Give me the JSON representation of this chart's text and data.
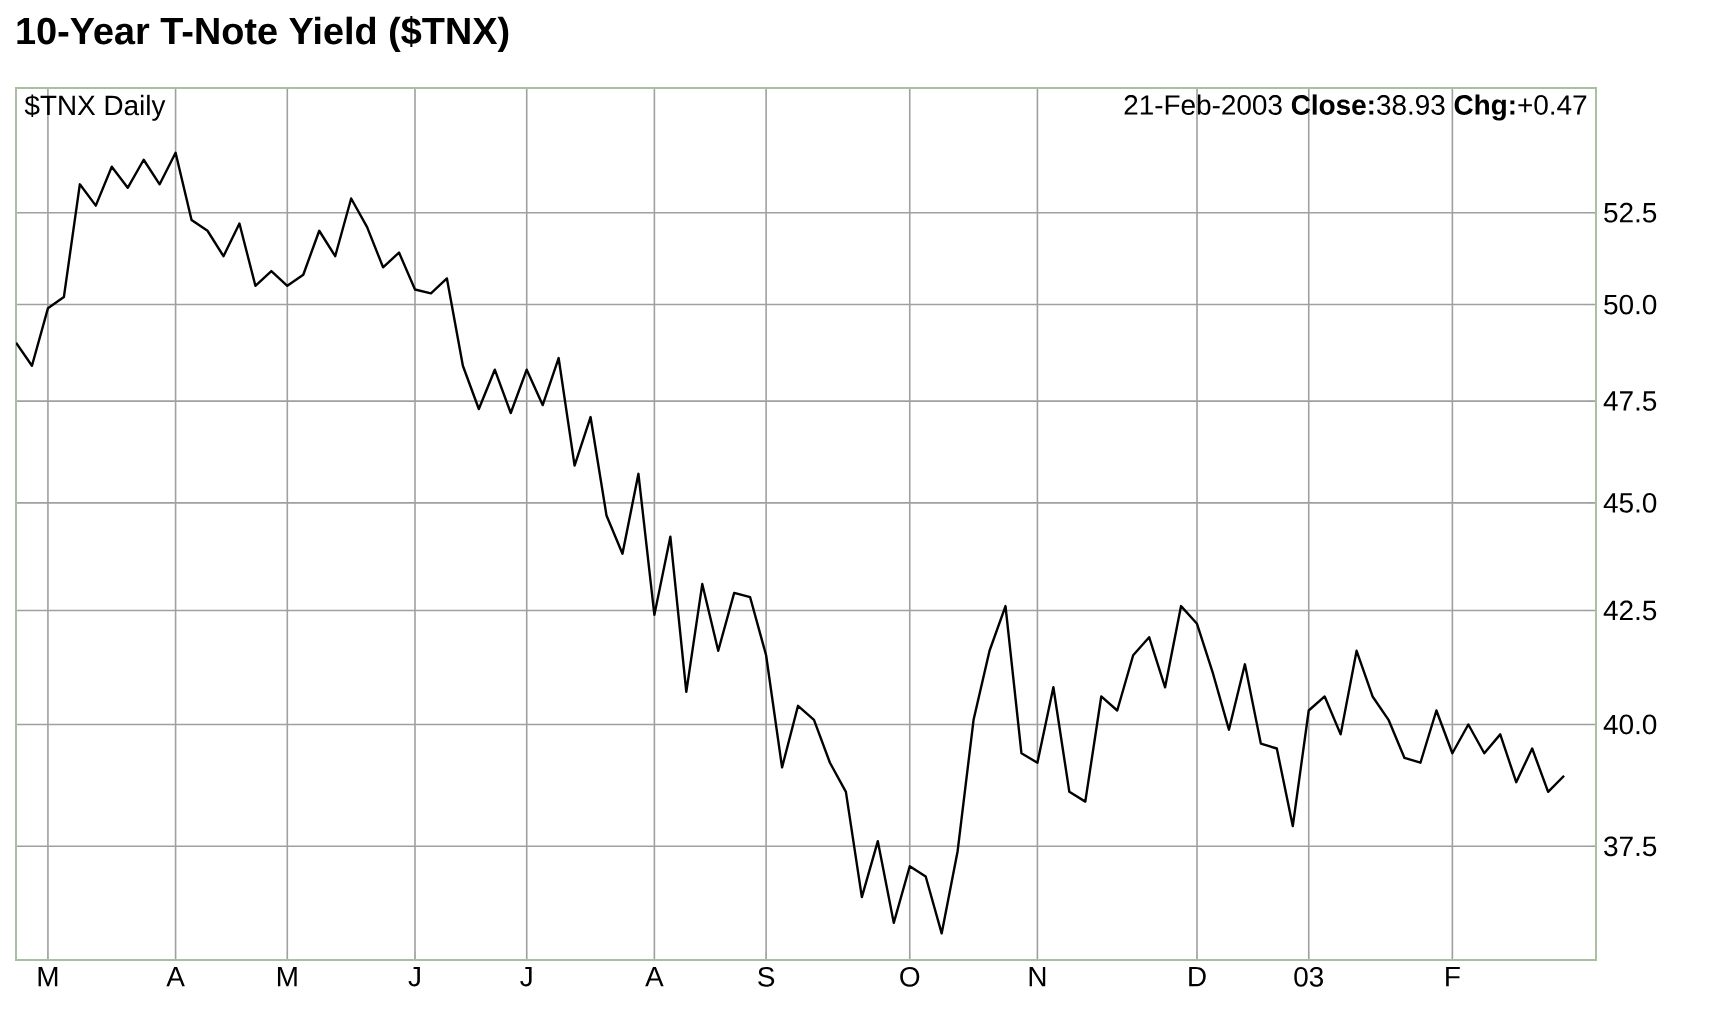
{
  "chart_data": {
    "type": "line",
    "title": "10-Year T-Note Yield ($TNX)",
    "annotations": [
      "$TNX Daily",
      "21-Feb-2003 **Close:**38.93 **Chg:**+0.47"
    ],
    "color": "#000000",
    "log": true,
    "grid": true,
    "categories": [
      null,
      null,
      "M",
      null,
      null,
      null,
      null,
      null,
      null,
      null,
      "A",
      null,
      null,
      null,
      null,
      null,
      null,
      "M",
      null,
      null,
      null,
      null,
      null,
      null,
      null,
      "J",
      null,
      null,
      null,
      null,
      null,
      null,
      "J",
      null,
      null,
      null,
      null,
      null,
      null,
      null,
      "A",
      null,
      null,
      null,
      null,
      null,
      null,
      "S",
      null,
      null,
      null,
      null,
      null,
      null,
      null,
      null,
      "O",
      null,
      null,
      null,
      null,
      null,
      null,
      null,
      "N",
      null,
      null,
      null,
      null,
      null,
      null,
      null,
      null,
      null,
      "D",
      null,
      null,
      null,
      null,
      null,
      null,
      "03",
      null,
      null,
      null,
      null,
      null,
      null,
      null,
      null,
      "F",
      null,
      null,
      null,
      null,
      null,
      null,
      null
    ],
    "ylim": [
      35.3,
      56.1
    ],
    "yticks": [
      37.5,
      {
        "value": 40,
        "label": "40.0"
      },
      42.5,
      {
        "value": 45,
        "label": "45.0"
      },
      47.5,
      {
        "value": 50,
        "label": "50.0"
      },
      52.5
    ],
    "values": [
      49.0,
      48.4,
      49.9,
      50.2,
      53.3,
      52.7,
      53.8,
      53.2,
      54.0,
      53.3,
      54.2,
      52.3,
      52.0,
      51.3,
      52.2,
      50.5,
      50.9,
      50.5,
      50.8,
      52.0,
      51.3,
      52.9,
      52.1,
      51.0,
      51.4,
      50.4,
      50.3,
      50.7,
      48.4,
      47.3,
      48.3,
      47.2,
      48.3,
      47.4,
      48.6,
      45.9,
      47.1,
      44.7,
      43.8,
      45.7,
      42.4,
      44.2,
      40.7,
      43.1,
      41.6,
      42.9,
      42.8,
      41.5,
      39.1,
      40.4,
      40.1,
      39.2,
      38.6,
      36.5,
      37.6,
      36.0,
      37.1,
      36.9,
      35.8,
      37.4,
      40.1,
      41.6,
      42.6,
      39.4,
      39.2,
      40.8,
      38.6,
      38.4,
      40.6,
      40.3,
      41.5,
      41.9,
      40.8,
      42.6,
      42.2,
      41.1,
      39.9,
      41.3,
      39.6,
      39.5,
      37.9,
      40.3,
      40.6,
      39.8,
      41.6,
      40.6,
      40.1,
      39.3,
      39.2,
      40.3,
      39.4,
      40.0,
      39.4,
      39.8,
      38.8,
      39.5,
      38.6,
      38.93
    ]
  }
}
